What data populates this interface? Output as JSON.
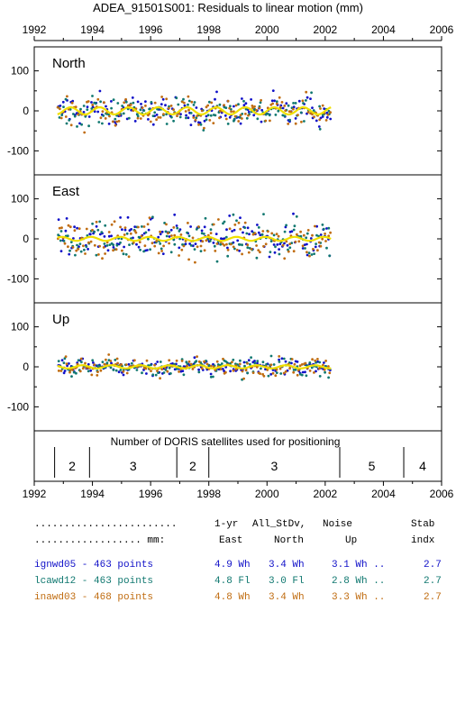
{
  "chart_data": {
    "type": "scatter",
    "title": "ADEA_91501S001: Residuals to linear motion (mm)",
    "x_ticks": [
      "1992",
      "1994",
      "1996",
      "1998",
      "2000",
      "2002",
      "2004",
      "2006"
    ],
    "x_range": [
      1992,
      2006
    ],
    "y_range": [
      -160,
      160
    ],
    "y_ticks": [
      "100",
      "0",
      "-100"
    ],
    "data_start": 1992.8,
    "data_end": 2002.2,
    "panels": [
      {
        "name": "North",
        "spread": 20,
        "seasonal_amplitude": 9
      },
      {
        "name": "East",
        "spread": 26,
        "seasonal_amplitude": 5
      },
      {
        "name": "Up",
        "spread": 12,
        "seasonal_amplitude": 4
      }
    ],
    "series": [
      {
        "name": "ignwd05",
        "color": "#1010c8",
        "points": 463
      },
      {
        "name": "lcawd12",
        "color": "#107870",
        "points": 463
      },
      {
        "name": "inawd03",
        "color": "#c06c10",
        "points": 468
      }
    ],
    "trend_color": "#f0e000",
    "satellites": {
      "label": "Number of DORIS satellites used for positioning",
      "segments": [
        {
          "start": 1992.7,
          "end": 1993.9,
          "count": "2"
        },
        {
          "start": 1993.9,
          "end": 1996.9,
          "count": "3"
        },
        {
          "start": 1996.9,
          "end": 1998.0,
          "count": "2"
        },
        {
          "start": 1998.0,
          "end": 2002.5,
          "count": "3"
        },
        {
          "start": 2002.5,
          "end": 2004.7,
          "count": "5"
        },
        {
          "start": 2004.7,
          "end": 2006.0,
          "count": "4"
        }
      ]
    }
  },
  "stats": {
    "header1": {
      "dots": "........................",
      "one_yr": "1-yr",
      "all_stdv": "All_StDv,",
      "noise": "Noise",
      "stab": "Stab"
    },
    "header2": {
      "dots": ".................. mm:",
      "east": "East",
      "north": "North",
      "up": "Up",
      "indx": "indx"
    },
    "rows": [
      {
        "label": "ignwd05 - 463 points",
        "east": "4.9 Wh",
        "north": "3.4 Wh",
        "up": "3.1 Wh ..",
        "indx": "2.7",
        "color": "#1010c8"
      },
      {
        "label": "lcawd12 - 463 points",
        "east": "4.8 Fl",
        "north": "3.0 Fl",
        "up": "2.8 Wh ..",
        "indx": "2.7",
        "color": "#107870"
      },
      {
        "label": "inawd03 - 468 points",
        "east": "4.8 Wh",
        "north": "3.4 Wh",
        "up": "3.3 Wh ..",
        "indx": "2.7",
        "color": "#c06c10"
      }
    ]
  }
}
